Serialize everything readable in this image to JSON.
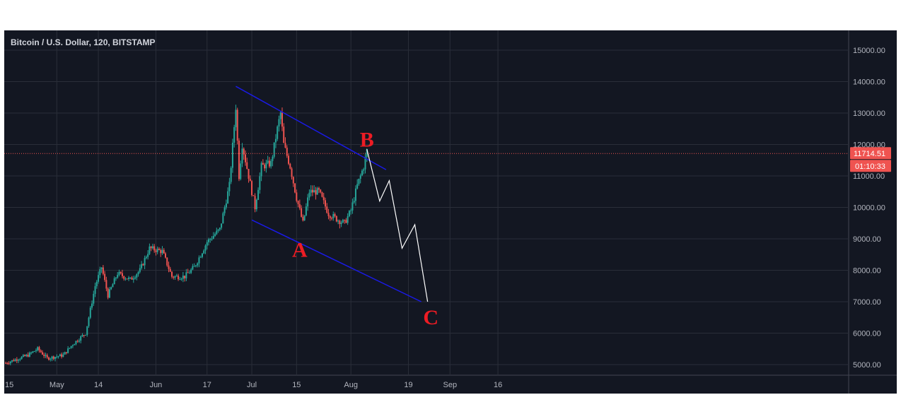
{
  "chart_data": {
    "type": "candlestick",
    "title": "Bitcoin / U.S. Dollar, 120, BITSTAMP",
    "y_ticks": [
      "15000.00",
      "14000.00",
      "13000.00",
      "12000.00",
      "11000.00",
      "10000.00",
      "9000.00",
      "8000.00",
      "7000.00",
      "6000.00",
      "5000.00"
    ],
    "ylim": [
      4800,
      15300
    ],
    "x_ticks": [
      "15",
      "May",
      "14",
      "Jun",
      "17",
      "Jul",
      "15",
      "Aug",
      "19",
      "Sep",
      "16"
    ],
    "current_price": "11714.51",
    "countdown": "01:10:33",
    "colors": {
      "up": "#26a69a",
      "down": "#ef5350",
      "background": "#131722",
      "grid": "#2a2e39",
      "channel": "#1a1ae6",
      "projection": "#ffffff",
      "wave_labels": "#ed1c24"
    },
    "price_path": [
      [
        "2019-04-15",
        5050
      ],
      [
        "2019-04-22",
        5300
      ],
      [
        "2019-04-25",
        5500
      ],
      [
        "2019-04-28",
        5200
      ],
      [
        "2019-05-03",
        5300
      ],
      [
        "2019-05-06",
        5650
      ],
      [
        "2019-05-10",
        6000
      ],
      [
        "2019-05-13",
        7500
      ],
      [
        "2019-05-15",
        8100
      ],
      [
        "2019-05-17",
        7200
      ],
      [
        "2019-05-20",
        7900
      ],
      [
        "2019-05-24",
        7700
      ],
      [
        "2019-05-27",
        8000
      ],
      [
        "2019-05-30",
        8700
      ],
      [
        "2019-06-03",
        8600
      ],
      [
        "2019-06-06",
        7800
      ],
      [
        "2019-06-10",
        7800
      ],
      [
        "2019-06-13",
        8100
      ],
      [
        "2019-06-17",
        8900
      ],
      [
        "2019-06-21",
        9300
      ],
      [
        "2019-06-24",
        10700
      ],
      [
        "2019-06-26",
        13200
      ],
      [
        "2019-06-27",
        11000
      ],
      [
        "2019-06-28",
        12000
      ],
      [
        "2019-06-30",
        11000
      ],
      [
        "2019-07-02",
        10000
      ],
      [
        "2019-07-04",
        11300
      ],
      [
        "2019-07-07",
        11400
      ],
      [
        "2019-07-09",
        12500
      ],
      [
        "2019-07-10",
        13000
      ],
      [
        "2019-07-11",
        12000
      ],
      [
        "2019-07-13",
        11300
      ],
      [
        "2019-07-15",
        10300
      ],
      [
        "2019-07-17",
        9500
      ],
      [
        "2019-07-19",
        10500
      ],
      [
        "2019-07-22",
        10500
      ],
      [
        "2019-07-25",
        9800
      ],
      [
        "2019-07-28",
        9600
      ],
      [
        "2019-07-30",
        9500
      ],
      [
        "2019-08-01",
        9900
      ],
      [
        "2019-08-03",
        10700
      ],
      [
        "2019-08-05",
        11300
      ],
      [
        "2019-08-06",
        11800
      ]
    ],
    "channel_lines": [
      {
        "from": [
          "2019-06-26",
          13850
        ],
        "to": [
          "2019-08-12",
          11200
        ]
      },
      {
        "from": [
          "2019-07-01",
          9600
        ],
        "to": [
          "2019-08-23",
          7000
        ]
      }
    ],
    "projection_path": [
      [
        "2019-08-06",
        11850
      ],
      [
        "2019-08-10",
        10200
      ],
      [
        "2019-08-13",
        10850
      ],
      [
        "2019-08-17",
        8700
      ],
      [
        "2019-08-21",
        9450
      ],
      [
        "2019-08-25",
        7000
      ]
    ],
    "wave_labels": [
      {
        "text": "A",
        "date": "2019-07-16",
        "price": 8700
      },
      {
        "text": "B",
        "date": "2019-08-06",
        "price": 12200
      },
      {
        "text": "C",
        "date": "2019-08-26",
        "price": 6550
      }
    ]
  }
}
